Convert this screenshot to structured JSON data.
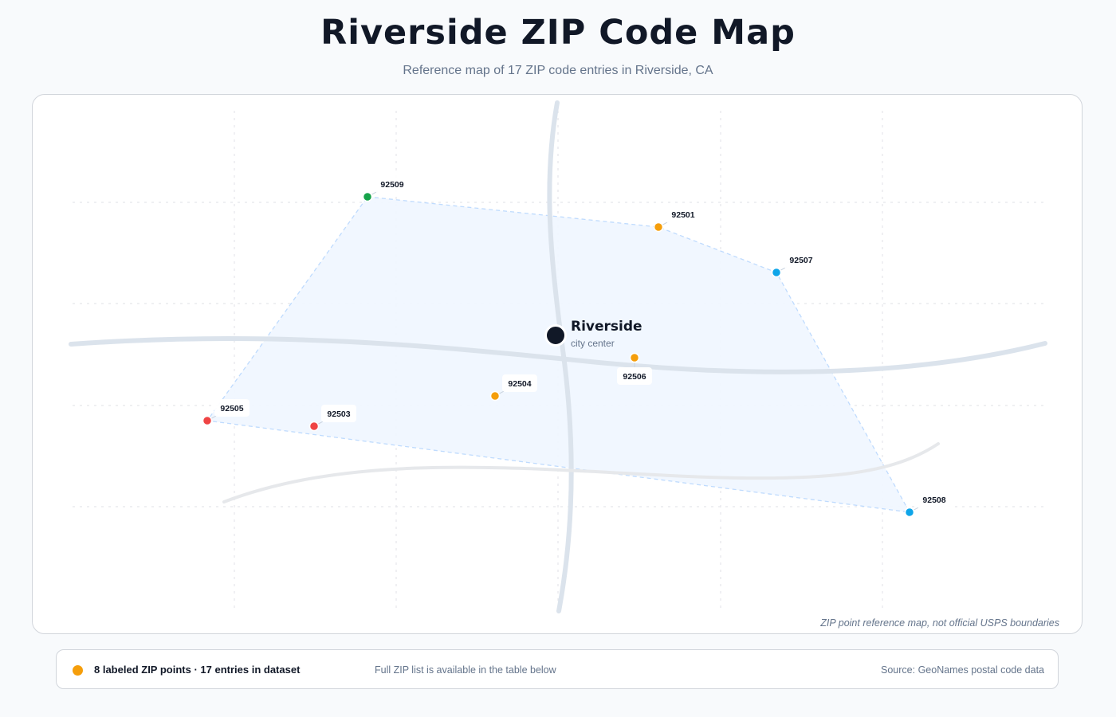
{
  "header": {
    "title": "Riverside ZIP Code Map",
    "subtitle": "Reference map of 17 ZIP code entries in Riverside, CA"
  },
  "map": {
    "city": {
      "name": "Riverside",
      "sublabel": "city center"
    },
    "disclaimer": "ZIP point reference map, not official USPS boundaries",
    "colors": {
      "red": "#ef4444",
      "green": "#16a34a",
      "orange": "#f59e0b",
      "blue": "#0ea5e9",
      "area_fill": "#eff6ff",
      "area_stroke": "#bfdbfe",
      "road": "#dbe3ec"
    },
    "zip_points": [
      {
        "zip": "92509",
        "color": "green"
      },
      {
        "zip": "92501",
        "color": "orange"
      },
      {
        "zip": "92507",
        "color": "blue"
      },
      {
        "zip": "92506",
        "color": "orange"
      },
      {
        "zip": "92504",
        "color": "orange"
      },
      {
        "zip": "92505",
        "color": "red"
      },
      {
        "zip": "92503",
        "color": "red"
      },
      {
        "zip": "92508",
        "color": "blue"
      }
    ]
  },
  "legend": {
    "marker_color": "#f59e0b",
    "summary": "8 labeled ZIP points · 17 entries in dataset",
    "note": "Full ZIP list is available in the table below",
    "source": "Source: GeoNames postal code data"
  }
}
